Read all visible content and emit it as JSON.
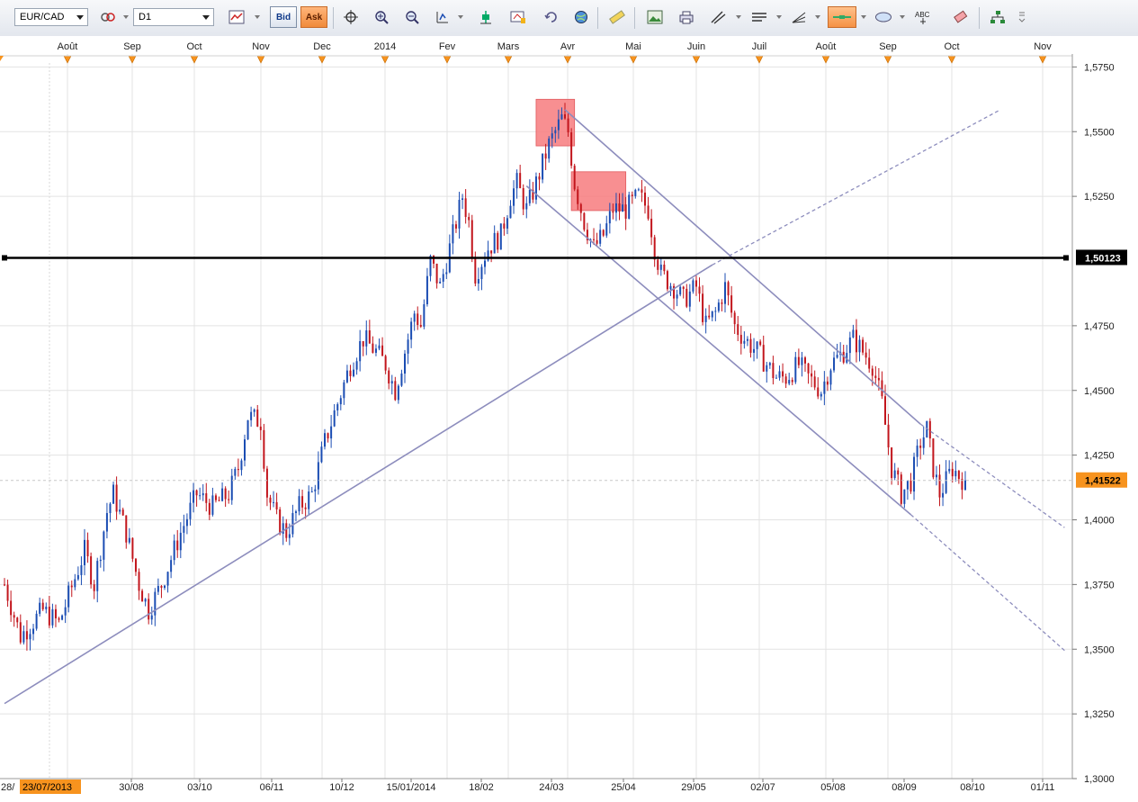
{
  "toolbar": {
    "symbol": "EUR/CAD",
    "timeframe": "D1",
    "bid_label": "Bid",
    "ask_label": "Ask",
    "text_tool_label": "ABC",
    "icons": [
      "chart-type-icon",
      "crosshair-icon",
      "zoom-in-icon",
      "zoom-out-icon",
      "scroll-icon",
      "indicator-icon",
      "anchor-icon",
      "template-icon",
      "refresh-icon",
      "globe-icon",
      "ruler-icon",
      "image-icon",
      "print-icon",
      "draw-lines-icon",
      "hline-icon",
      "fibonacci-icon",
      "rectangle-tool-icon",
      "ellipse-icon",
      "text-icon",
      "eraser-icon",
      "object-tree-icon",
      "more-icon"
    ]
  },
  "colors": {
    "bull": "#1b4db3",
    "bear": "#c2151c",
    "trendline": "#8d8dbd",
    "zone": "#f77b7e",
    "hline": "#000000",
    "price_badge": "#f7931e"
  },
  "chart_data": {
    "type": "candlestick",
    "symbol": "EUR/CAD",
    "timeframe": "D1",
    "ylim": [
      1.3,
      1.58
    ],
    "y_ticks": [
      "1,3000",
      "1,3250",
      "1,3500",
      "1,3750",
      "1,4000",
      "1,4250",
      "1,4500",
      "1,4750",
      "1,5250",
      "1,5500",
      "1,5750"
    ],
    "months_top": [
      "Août",
      "Sep",
      "Oct",
      "Nov",
      "Dec",
      "2014",
      "Fev",
      "Mars",
      "Avr",
      "Mai",
      "Juin",
      "Juil",
      "Août",
      "Sep",
      "Oct",
      "Nov"
    ],
    "dates_bottom": [
      "28/",
      "23/07/2013",
      "30/08",
      "03/10",
      "06/11",
      "10/12",
      "15/01/2014",
      "18/02",
      "24/03",
      "25/04",
      "29/05",
      "02/07",
      "05/08",
      "08/09",
      "08/10",
      "01/11"
    ],
    "start_date": "23/07/2013",
    "hline_value": 1.50123,
    "hline_label": "1,50123",
    "current_price": 1.41522,
    "current_label": "1,41522",
    "price_path": [
      [
        0,
        1.375
      ],
      [
        5,
        1.355
      ],
      [
        12,
        1.365
      ],
      [
        17,
        1.36
      ],
      [
        25,
        1.388
      ],
      [
        28,
        1.375
      ],
      [
        32,
        1.403
      ],
      [
        34,
        1.41
      ],
      [
        38,
        1.395
      ],
      [
        42,
        1.375
      ],
      [
        45,
        1.365
      ],
      [
        49,
        1.375
      ],
      [
        55,
        1.395
      ],
      [
        60,
        1.41
      ],
      [
        65,
        1.405
      ],
      [
        70,
        1.41
      ],
      [
        73,
        1.42
      ],
      [
        76,
        1.44
      ],
      [
        80,
        1.438
      ],
      [
        82,
        1.41
      ],
      [
        85,
        1.4
      ],
      [
        88,
        1.395
      ],
      [
        92,
        1.405
      ],
      [
        96,
        1.41
      ],
      [
        100,
        1.43
      ],
      [
        104,
        1.445
      ],
      [
        108,
        1.46
      ],
      [
        112,
        1.47
      ],
      [
        116,
        1.465
      ],
      [
        119,
        1.46
      ],
      [
        122,
        1.45
      ],
      [
        125,
        1.465
      ],
      [
        128,
        1.48
      ],
      [
        130,
        1.475
      ],
      [
        133,
        1.5
      ],
      [
        136,
        1.49
      ],
      [
        140,
        1.51
      ],
      [
        143,
        1.525
      ],
      [
        145,
        1.515
      ],
      [
        147,
        1.495
      ],
      [
        151,
        1.505
      ],
      [
        155,
        1.51
      ],
      [
        158,
        1.525
      ],
      [
        160,
        1.53
      ],
      [
        163,
        1.52
      ],
      [
        166,
        1.53
      ],
      [
        170,
        1.545
      ],
      [
        174,
        1.555
      ],
      [
        176,
        1.55
      ],
      [
        178,
        1.53
      ],
      [
        181,
        1.515
      ],
      [
        184,
        1.505
      ],
      [
        187,
        1.51
      ],
      [
        190,
        1.52
      ],
      [
        194,
        1.52
      ],
      [
        198,
        1.525
      ],
      [
        201,
        1.52
      ],
      [
        203,
        1.505
      ],
      [
        205,
        1.495
      ],
      [
        209,
        1.49
      ],
      [
        212,
        1.485
      ],
      [
        216,
        1.49
      ],
      [
        219,
        1.475
      ],
      [
        222,
        1.48
      ],
      [
        225,
        1.49
      ],
      [
        228,
        1.475
      ],
      [
        231,
        1.47
      ],
      [
        235,
        1.465
      ],
      [
        238,
        1.46
      ],
      [
        241,
        1.455
      ],
      [
        244,
        1.455
      ],
      [
        248,
        1.46
      ],
      [
        251,
        1.455
      ],
      [
        255,
        1.45
      ],
      [
        258,
        1.46
      ],
      [
        262,
        1.465
      ],
      [
        265,
        1.47
      ],
      [
        268,
        1.465
      ],
      [
        271,
        1.46
      ],
      [
        274,
        1.445
      ],
      [
        277,
        1.42
      ],
      [
        280,
        1.41
      ],
      [
        283,
        1.415
      ],
      [
        286,
        1.43
      ],
      [
        288,
        1.435
      ],
      [
        290,
        1.42
      ],
      [
        292,
        1.41
      ],
      [
        294,
        1.415
      ],
      [
        296,
        1.42
      ],
      [
        298,
        1.417
      ],
      [
        300,
        1.415
      ]
    ],
    "zones": [
      {
        "t0": 166,
        "t1": 178,
        "p0": 1.5445,
        "p1": 1.5625
      },
      {
        "t0": 177,
        "t1": 194,
        "p0": 1.5195,
        "p1": 1.5345
      }
    ],
    "lines": [
      {
        "t0": 0,
        "p0": 1.329,
        "t1": 221,
        "p1": 1.4985,
        "style": "solid"
      },
      {
        "t0": 221,
        "p0": 1.4985,
        "t1": 311,
        "p1": 1.5585,
        "style": "dashed"
      },
      {
        "t0": 175,
        "p0": 1.5585,
        "t1": 286,
        "p1": 1.437,
        "style": "solid"
      },
      {
        "t0": 286,
        "p0": 1.437,
        "t1": 331,
        "p1": 1.397,
        "style": "dashed"
      },
      {
        "t0": 163,
        "p0": 1.529,
        "t1": 283,
        "p1": 1.402,
        "style": "solid"
      },
      {
        "t0": 283,
        "p0": 1.402,
        "t1": 331,
        "p1": 1.3495,
        "style": "dashed"
      }
    ]
  }
}
